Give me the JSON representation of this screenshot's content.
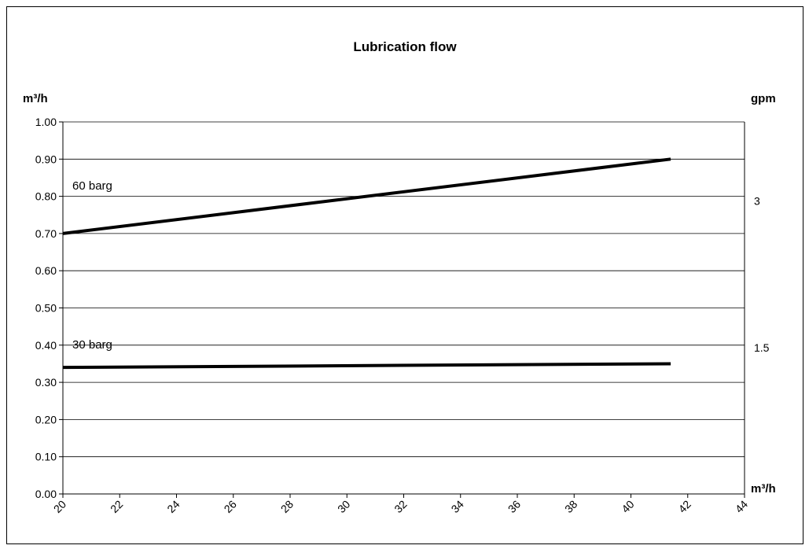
{
  "chart_data": {
    "type": "line",
    "title": "Lubrication flow",
    "ylabel": "m³/h",
    "y2label": "gpm",
    "xlabel": "m³/h",
    "x_ticks": [
      "20",
      "22",
      "24",
      "26",
      "28",
      "30",
      "32",
      "34",
      "36",
      "38",
      "40",
      "42",
      "44"
    ],
    "y_ticks": [
      "0.00",
      "0.10",
      "0.20",
      "0.30",
      "0.40",
      "0.50",
      "0.60",
      "0.70",
      "0.80",
      "0.90",
      "1.00"
    ],
    "y2_ticks": [
      {
        "label": "3",
        "value": 0.787
      },
      {
        "label": "1.5",
        "value": 0.393
      }
    ],
    "xlim": [
      20,
      44
    ],
    "ylim": [
      0,
      1.0
    ],
    "grid": "horizontal",
    "series": [
      {
        "name": "60 barg",
        "x": [
          20,
          41.4
        ],
        "y": [
          0.7,
          0.9
        ]
      },
      {
        "name": "30 barg",
        "x": [
          20,
          41.4
        ],
        "y": [
          0.34,
          0.35
        ]
      }
    ]
  }
}
